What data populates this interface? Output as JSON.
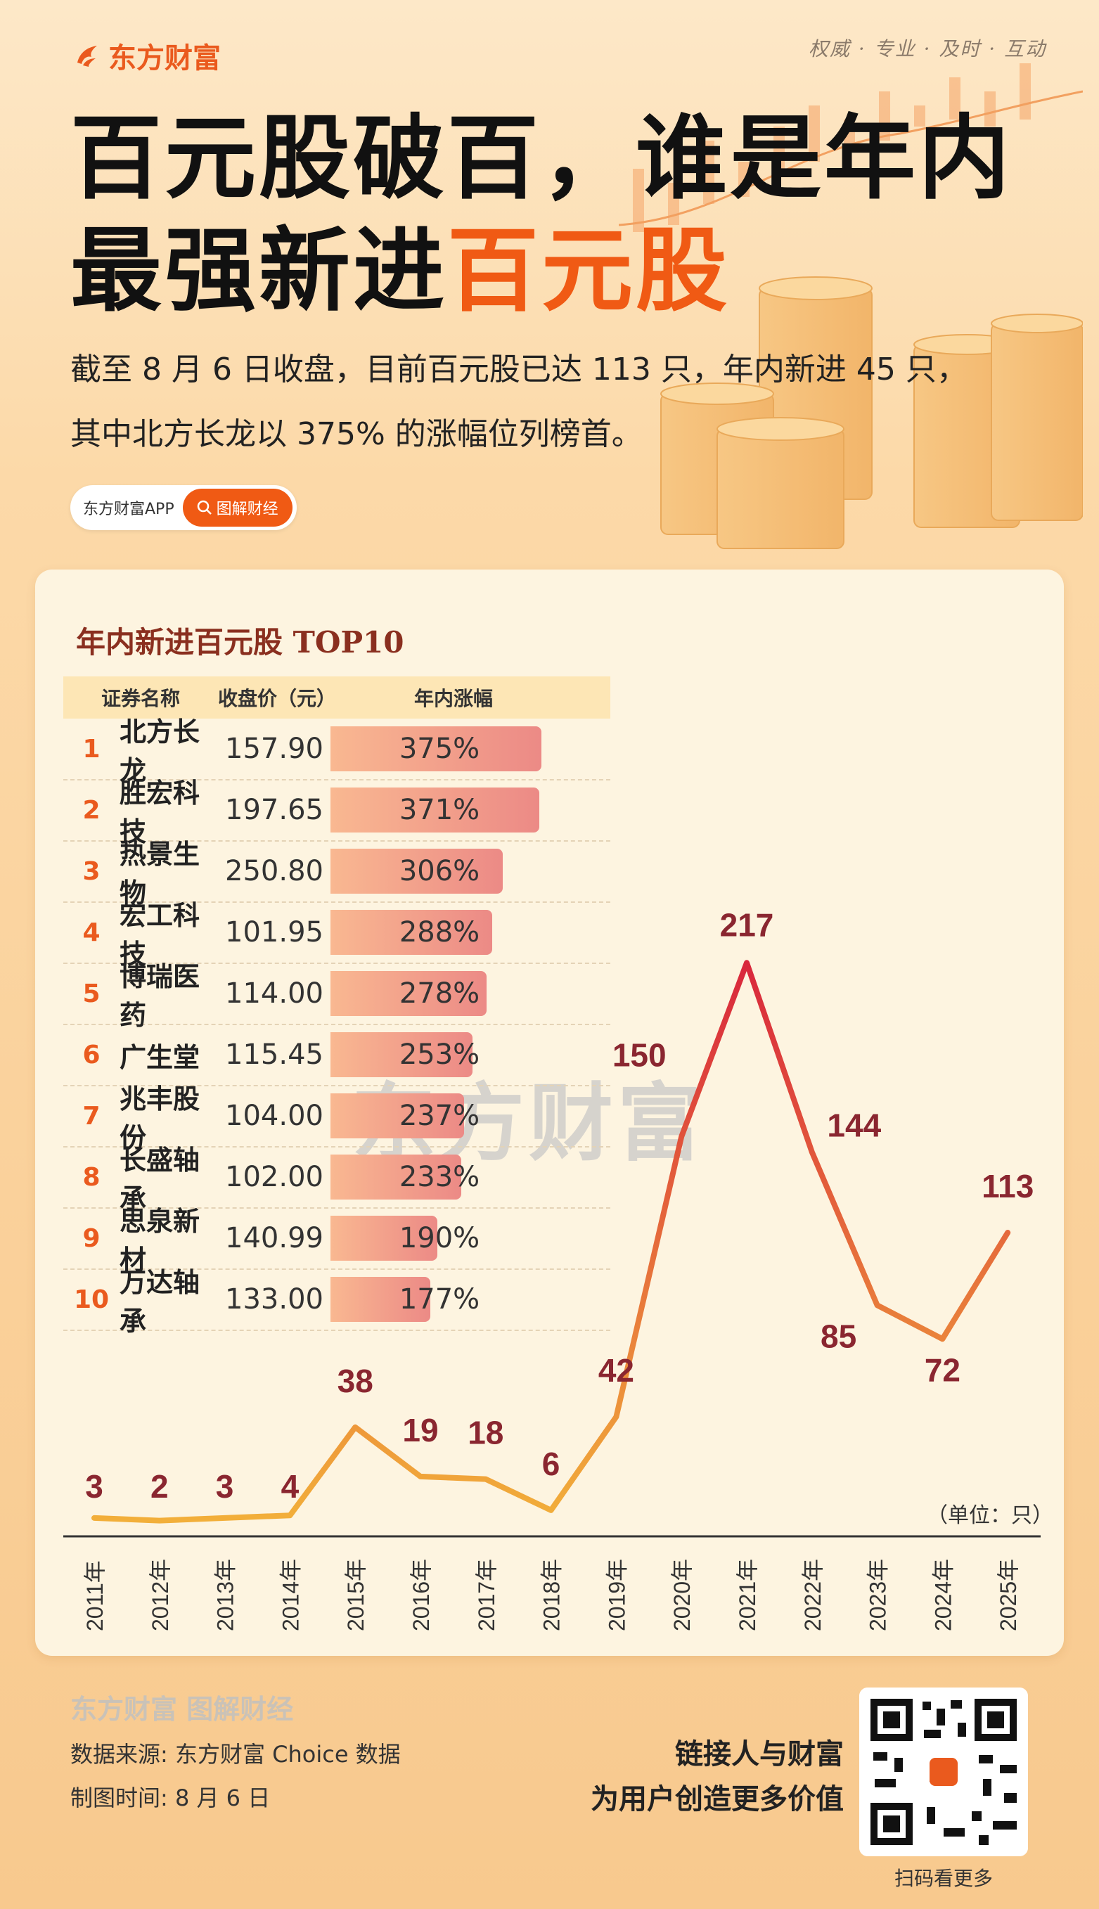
{
  "brand": "东方财富",
  "slogan": "权威 · 专业 · 及时 · 互动",
  "title": {
    "line1": "百元股破百，谁是年内",
    "line2_a": "最强新进",
    "line2_b": "百元股"
  },
  "subtitle": {
    "line1": "截至 8 月 6 日收盘，目前百元股已达 113 只，年内新进 45 只，",
    "line2": "其中北方长龙以 375% 的涨幅位列榜首。"
  },
  "pill": {
    "app": "东方财富APP",
    "button": "图解财经"
  },
  "table": {
    "title": "年内新进百元股 TOP10",
    "headers": [
      "证券名称",
      "收盘价（元）",
      "年内涨幅"
    ],
    "rows": [
      {
        "rank": "1",
        "name": "北方长龙",
        "price": "157.90",
        "gain": "375%",
        "value": 375
      },
      {
        "rank": "2",
        "name": "胜宏科技",
        "price": "197.65",
        "gain": "371%",
        "value": 371
      },
      {
        "rank": "3",
        "name": "热景生物",
        "price": "250.80",
        "gain": "306%",
        "value": 306
      },
      {
        "rank": "4",
        "name": "宏工科技",
        "price": "101.95",
        "gain": "288%",
        "value": 288
      },
      {
        "rank": "5",
        "name": "博瑞医药",
        "price": "114.00",
        "gain": "278%",
        "value": 278
      },
      {
        "rank": "6",
        "name": "广生堂",
        "price": "115.45",
        "gain": "253%",
        "value": 253
      },
      {
        "rank": "7",
        "name": "兆丰股份",
        "price": "104.00",
        "gain": "237%",
        "value": 237
      },
      {
        "rank": "8",
        "name": "长盛轴承",
        "price": "102.00",
        "gain": "233%",
        "value": 233
      },
      {
        "rank": "9",
        "name": "思泉新材",
        "price": "140.99",
        "gain": "190%",
        "value": 190
      },
      {
        "rank": "10",
        "name": "万达轴承",
        "price": "133.00",
        "gain": "177%",
        "value": 177
      }
    ],
    "bar_color_start": "#f9b891",
    "bar_color_end": "#ec8a86"
  },
  "watermark": "东方财富",
  "chart_data": {
    "type": "line",
    "x": [
      "2011年",
      "2012年",
      "2013年",
      "2014年",
      "2015年",
      "2016年",
      "2017年",
      "2018年",
      "2019年",
      "2020年",
      "2021年",
      "2022年",
      "2023年",
      "2024年",
      "2025年"
    ],
    "values": [
      3,
      2,
      3,
      4,
      38,
      19,
      18,
      6,
      42,
      150,
      217,
      144,
      85,
      72,
      113
    ],
    "unit_label": "（单位：只）",
    "ylim": [
      0,
      240
    ],
    "grid": false,
    "line_color_low": "#f2b03a",
    "line_color_high": "#d8243c",
    "label_color": "#8a2630"
  },
  "footer": {
    "brand_line": "东方财富 图解财经",
    "source": "数据来源: 东方财富 Choice 数据",
    "date": "制图时间: 8 月 6 日",
    "slogan1": "链接人与财富",
    "slogan2": "为用户创造更多价值",
    "qr_caption": "扫码看更多"
  }
}
